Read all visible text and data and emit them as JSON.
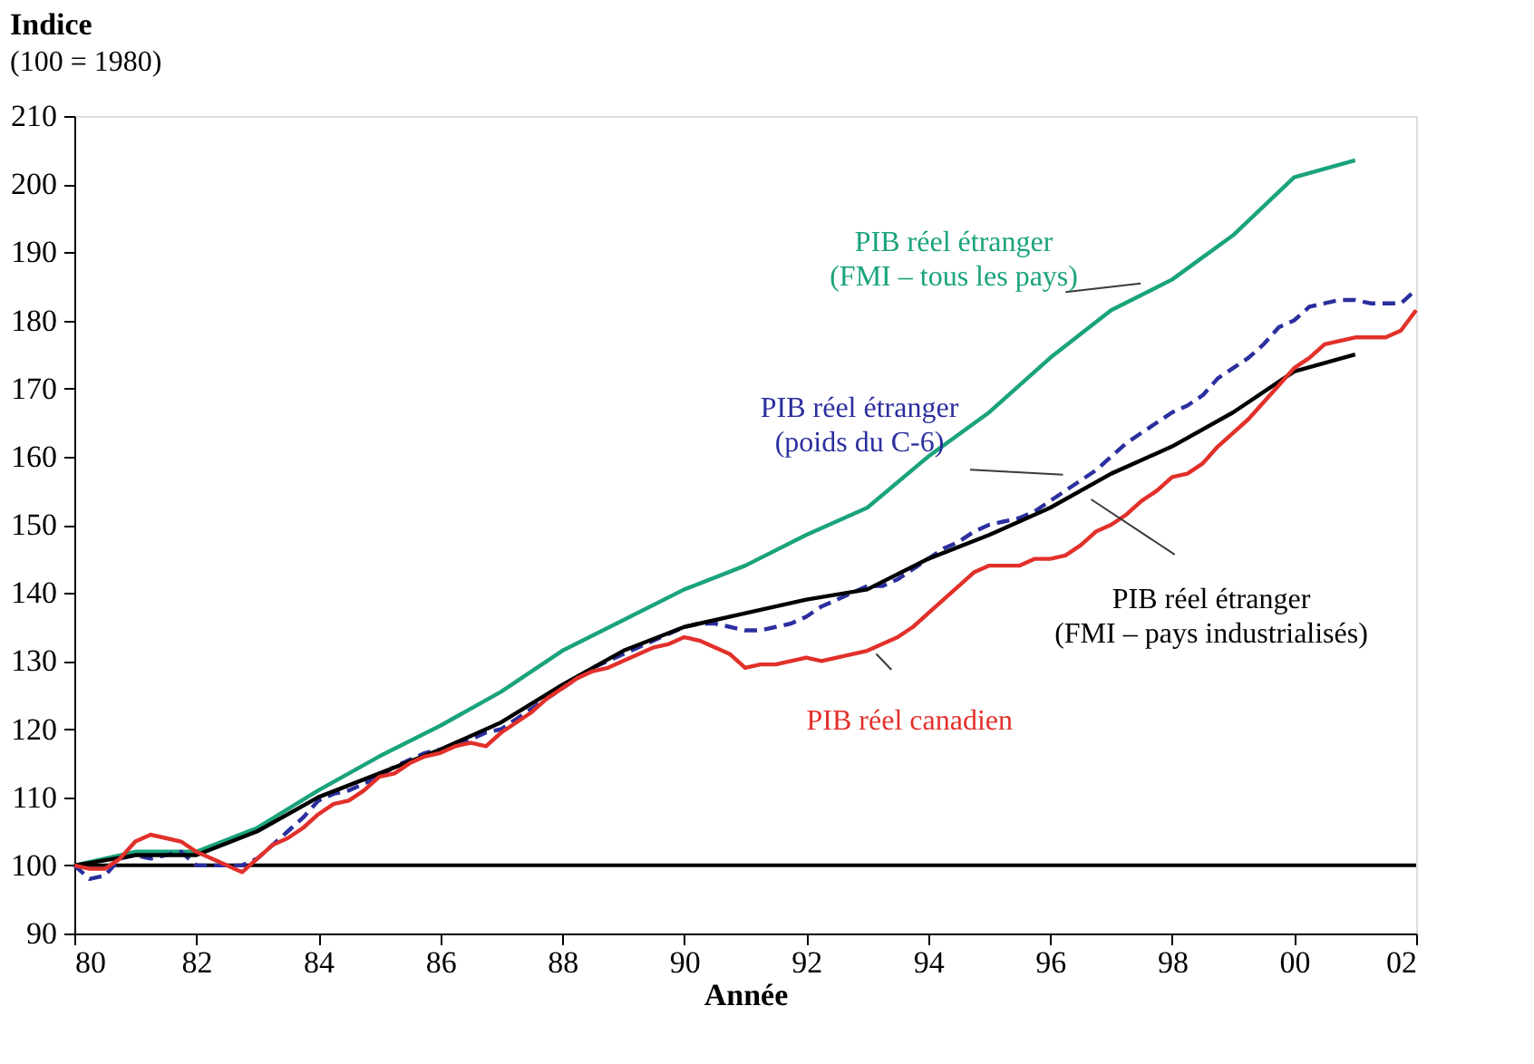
{
  "chart_data": {
    "type": "line",
    "xlabel": "Année",
    "ylabel": "Indice",
    "annotations": [
      "(100 = 1980)"
    ],
    "xlim": [
      1980,
      2002
    ],
    "ylim": [
      90,
      210
    ],
    "xticks": [
      {
        "value": 1980,
        "label": "80"
      },
      {
        "value": 1982,
        "label": "82"
      },
      {
        "value": 1984,
        "label": "84"
      },
      {
        "value": 1986,
        "label": "86"
      },
      {
        "value": 1988,
        "label": "88"
      },
      {
        "value": 1990,
        "label": "90"
      },
      {
        "value": 1992,
        "label": "92"
      },
      {
        "value": 1994,
        "label": "94"
      },
      {
        "value": 1996,
        "label": "96"
      },
      {
        "value": 1998,
        "label": "98"
      },
      {
        "value": 2000,
        "label": "00"
      },
      {
        "value": 2002,
        "label": "02"
      }
    ],
    "yticks": [
      90,
      100,
      110,
      120,
      130,
      140,
      150,
      160,
      170,
      180,
      190,
      200,
      210
    ],
    "grid": false,
    "legend": false,
    "marker": "none",
    "ref_lines": [
      {
        "axis": "y",
        "value": 100,
        "color": "#000000"
      }
    ],
    "series": [
      {
        "name": "PIB réel étranger (FMI – tous les pays)",
        "color": "#1aa37c",
        "line_style": "solid",
        "x": [
          1980,
          1981,
          1982,
          1983,
          1984,
          1985,
          1986,
          1987,
          1988,
          1989,
          1990,
          1991,
          1992,
          1993,
          1994,
          1995,
          1996,
          1997,
          1998,
          1999,
          2000,
          2001
        ],
        "values": [
          100,
          102,
          102,
          105.5,
          111,
          116,
          120.5,
          125.5,
          131.5,
          136,
          140.5,
          144,
          148.5,
          152.5,
          160,
          166.5,
          174.5,
          181.5,
          186,
          192.5,
          201,
          203.5
        ]
      },
      {
        "name": "PIB réel étranger (poids du C-6)",
        "color": "#2b2f9e",
        "line_style": "dashed",
        "x": [
          1980,
          1980.25,
          1980.5,
          1980.75,
          1981,
          1981.25,
          1981.5,
          1981.75,
          1982,
          1982.25,
          1982.5,
          1982.75,
          1983,
          1983.25,
          1983.5,
          1983.75,
          1984,
          1984.25,
          1984.5,
          1984.75,
          1985,
          1985.25,
          1985.5,
          1985.75,
          1986,
          1986.25,
          1986.5,
          1986.75,
          1987,
          1987.25,
          1987.5,
          1987.75,
          1988,
          1988.25,
          1988.5,
          1988.75,
          1989,
          1989.25,
          1989.5,
          1989.75,
          1990,
          1990.25,
          1990.5,
          1990.75,
          1991,
          1991.25,
          1991.5,
          1991.75,
          1992,
          1992.25,
          1992.5,
          1992.75,
          1993,
          1993.25,
          1993.5,
          1993.75,
          1994,
          1994.25,
          1994.5,
          1994.75,
          1995,
          1995.25,
          1995.5,
          1995.75,
          1996,
          1996.25,
          1996.5,
          1996.75,
          1997,
          1997.25,
          1997.5,
          1997.75,
          1998,
          1998.25,
          1998.5,
          1998.75,
          1999,
          1999.25,
          1999.5,
          1999.75,
          2000,
          2000.25,
          2000.5,
          2000.75,
          2001,
          2001.25,
          2001.5,
          2001.75,
          2002
        ],
        "values": [
          100,
          98,
          98.5,
          101,
          101.5,
          101,
          101.5,
          102,
          100,
          100,
          100,
          100,
          101,
          103,
          105,
          107,
          109.5,
          110.5,
          111,
          112,
          113,
          114.5,
          115.5,
          116.5,
          117,
          117.5,
          118.5,
          119.5,
          120,
          121.5,
          123,
          124.5,
          126,
          127.5,
          129,
          130,
          131,
          132,
          133,
          134,
          135,
          135.5,
          135.5,
          135,
          134.5,
          134.5,
          135,
          135.5,
          136.5,
          138,
          139,
          140,
          141,
          141,
          142,
          143.5,
          145,
          146.5,
          147.5,
          149,
          150,
          150.5,
          151,
          152,
          153.5,
          155,
          156.5,
          158,
          160,
          162,
          163.5,
          165,
          166.5,
          167.5,
          169,
          171.5,
          173,
          174.5,
          176.5,
          179,
          180,
          182,
          182.5,
          183,
          183,
          182.5,
          182.5,
          182.5,
          184.5
        ]
      },
      {
        "name": "PIB réel étranger (FMI – pays industrialisés)",
        "color": "#000000",
        "line_style": "solid",
        "x": [
          1980,
          1981,
          1982,
          1983,
          1984,
          1985,
          1986,
          1987,
          1988,
          1989,
          1990,
          1991,
          1992,
          1993,
          1994,
          1995,
          1996,
          1997,
          1998,
          1999,
          2000,
          2001
        ],
        "values": [
          100,
          101.5,
          101.5,
          105,
          110,
          113.5,
          117,
          121,
          126.5,
          131.5,
          135,
          137,
          139,
          140.5,
          145,
          148.5,
          152.5,
          157.5,
          161.5,
          166.5,
          172.5,
          175
        ]
      },
      {
        "name": "PIB réel canadien",
        "color": "#e2302a",
        "line_style": "solid",
        "x": [
          1980,
          1980.25,
          1980.5,
          1980.75,
          1981,
          1981.25,
          1981.5,
          1981.75,
          1982,
          1982.25,
          1982.5,
          1982.75,
          1983,
          1983.25,
          1983.5,
          1983.75,
          1984,
          1984.25,
          1984.5,
          1984.75,
          1985,
          1985.25,
          1985.5,
          1985.75,
          1986,
          1986.25,
          1986.5,
          1986.75,
          1987,
          1987.25,
          1987.5,
          1987.75,
          1988,
          1988.25,
          1988.5,
          1988.75,
          1989,
          1989.25,
          1989.5,
          1989.75,
          1990,
          1990.25,
          1990.5,
          1990.75,
          1991,
          1991.25,
          1991.5,
          1991.75,
          1992,
          1992.25,
          1992.5,
          1992.75,
          1993,
          1993.25,
          1993.5,
          1993.75,
          1994,
          1994.25,
          1994.5,
          1994.75,
          1995,
          1995.25,
          1995.5,
          1995.75,
          1996,
          1996.25,
          1996.5,
          1996.75,
          1997,
          1997.25,
          1997.5,
          1997.75,
          1998,
          1998.25,
          1998.5,
          1998.75,
          1999,
          1999.25,
          1999.5,
          1999.75,
          2000,
          2000.25,
          2000.5,
          2000.75,
          2001,
          2001.25,
          2001.5,
          2001.75,
          2002
        ],
        "values": [
          100,
          99.5,
          99.5,
          101,
          103.5,
          104.5,
          104,
          103.5,
          102,
          101,
          100,
          99,
          101,
          103,
          104,
          105.5,
          107.5,
          109,
          109.5,
          111,
          113,
          113.5,
          115,
          116,
          116.5,
          117.5,
          118,
          117.5,
          119.5,
          121,
          122.5,
          124.5,
          126,
          127.5,
          128.5,
          129,
          130,
          131,
          132,
          132.5,
          133.5,
          133,
          132,
          131,
          129,
          129.5,
          129.5,
          130,
          130.5,
          130,
          130.5,
          131,
          131.5,
          132.5,
          133.5,
          135,
          137,
          139,
          141,
          143,
          144,
          144,
          144,
          145,
          145,
          145.5,
          147,
          149,
          150,
          151.5,
          153.5,
          155,
          157,
          157.5,
          159,
          161.5,
          163.5,
          165.5,
          168,
          170.5,
          173,
          174.5,
          176.5,
          177,
          177.5,
          177.5,
          177.5,
          178.5,
          181.5
        ]
      }
    ]
  }
}
